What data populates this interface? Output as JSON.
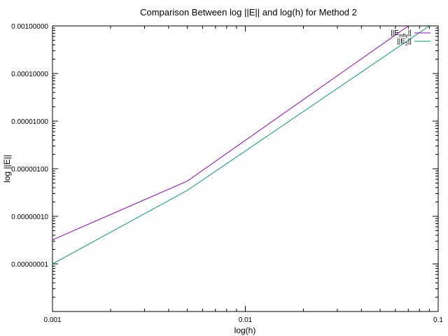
{
  "chart_data": {
    "type": "line",
    "title": "Comparison Between log ||E|| and log(h) for Method 2",
    "xlabel": "log(h)",
    "ylabel": "log ||E||",
    "x_scale": "log",
    "y_scale": "log",
    "xlim": [
      0.001,
      0.1
    ],
    "ylim": [
      1e-09,
      0.001
    ],
    "x_ticks": [
      "0.001",
      "0.01",
      "0.1"
    ],
    "y_ticks": [
      "0.00000001",
      "0.00000010",
      "0.00000100",
      "0.00001000",
      "0.00010000",
      "0.00100000"
    ],
    "grid": false,
    "legend_position": "top-right",
    "series": [
      {
        "name": "||E_inf||",
        "legend_label": "||E",
        "legend_sub": "infty",
        "legend_tail": "||",
        "color": "#9400d3",
        "x": [
          0.001,
          0.005,
          0.07
        ],
        "y": [
          3.2e-08,
          5.5e-07,
          0.001
        ]
      },
      {
        "name": "||E_2||",
        "legend_label": "||E",
        "legend_sub": "2",
        "legend_tail": "||",
        "color": "#009e73",
        "x": [
          0.001,
          0.005,
          0.09
        ],
        "y": [
          1e-08,
          3.5e-07,
          0.001
        ]
      }
    ]
  }
}
